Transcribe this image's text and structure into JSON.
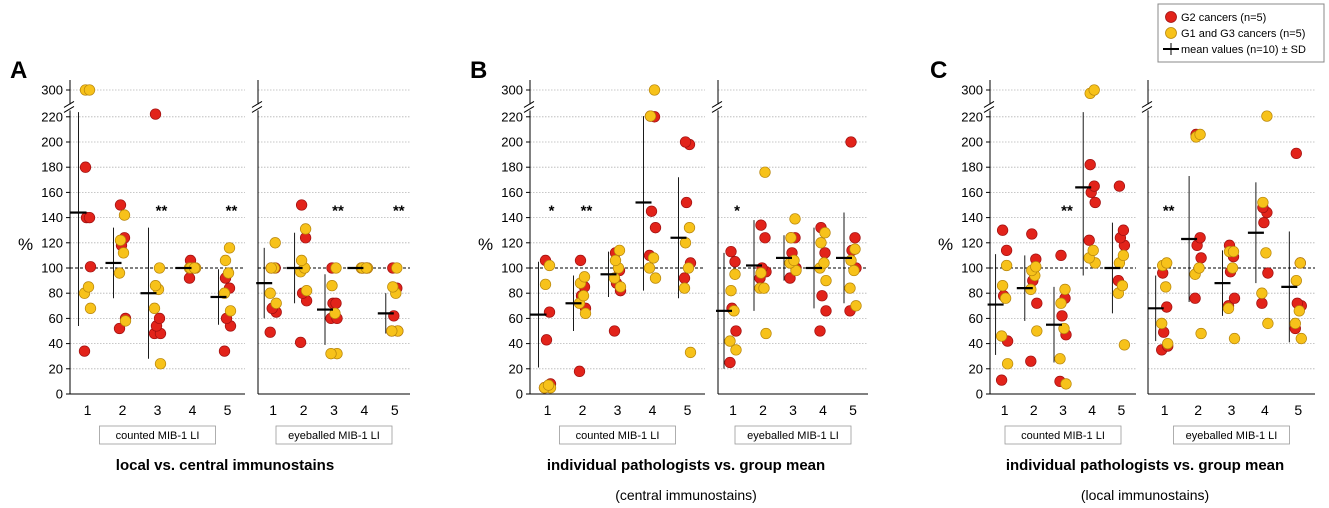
{
  "legend": {
    "red_label": "G2 cancers (n=5)",
    "yellow_label": "G1 and G3 cancers (n=5)",
    "mean_label": "mean values (n=10) ± SD"
  },
  "colors": {
    "red": "#e2231a",
    "yellow": "#f7c21a",
    "red_stroke": "#a01010",
    "yellow_stroke": "#b8860b"
  },
  "y_axis": {
    "label": "%",
    "ticks": [
      "0",
      "20",
      "40",
      "60",
      "80",
      "100",
      "120",
      "140",
      "160",
      "180",
      "200",
      "220",
      "300"
    ]
  },
  "panels": [
    {
      "letter": "A",
      "caption": "local vs. central immunostains",
      "subcaption": ""
    },
    {
      "letter": "B",
      "caption": "individual pathologists vs. group mean",
      "subcaption": "(central immunostains)"
    },
    {
      "letter": "C",
      "caption": "individual pathologists vs. group mean",
      "subcaption": "(local immunostains)"
    }
  ],
  "chart_data": [
    {
      "type": "scatter",
      "panel": "A",
      "ylim": [
        0,
        300
      ],
      "y_break": [
        220,
        300
      ],
      "reference_line": 100,
      "subplots": [
        {
          "label": "counted MIB-1 LI",
          "categories": [
            "1",
            "2",
            "3",
            "4",
            "5"
          ],
          "significance": [
            "",
            "",
            "**",
            "",
            "**"
          ],
          "mean": [
            144,
            104,
            80,
            100,
            77
          ],
          "sd": [
            90,
            28,
            52,
            0,
            22
          ],
          "red": [
            [
              34,
              101,
              140,
              140,
              180
            ],
            [
              52,
              60,
              118,
              124,
              150
            ],
            [
              48,
              48,
              54,
              60,
              228
            ],
            [
              92,
              100,
              100,
              100,
              106
            ],
            [
              34,
              54,
              60,
              84,
              92
            ]
          ],
          "yellow": [
            [
              68,
              80,
              85,
              300,
              300
            ],
            [
              58,
              96,
              112,
              122,
              142
            ],
            [
              24,
              68,
              83,
              86,
              100
            ],
            [
              100,
              100,
              100,
              100,
              100
            ],
            [
              66,
              80,
              96,
              106,
              116
            ]
          ]
        },
        {
          "label": "eyeballed MIB-1 LI",
          "categories": [
            "1",
            "2",
            "3",
            "4",
            "5"
          ],
          "significance": [
            "",
            "",
            "**",
            "",
            "**"
          ],
          "mean": [
            88,
            100,
            67,
            100,
            64
          ],
          "sd": [
            28,
            28,
            28,
            0,
            16
          ],
          "red": [
            [
              49,
              65,
              68,
              100,
              100
            ],
            [
              41,
              74,
              80,
              124,
              150
            ],
            [
              60,
              60,
              72,
              72,
              100
            ],
            [
              100,
              100,
              100,
              100,
              100
            ],
            [
              50,
              50,
              62,
              84,
              100
            ]
          ],
          "yellow": [
            [
              72,
              80,
              100,
              100,
              120
            ],
            [
              82,
              97,
              100,
              106,
              131
            ],
            [
              32,
              32,
              64,
              86,
              100
            ],
            [
              100,
              100,
              100,
              100,
              100
            ],
            [
              50,
              50,
              80,
              85,
              100
            ]
          ]
        }
      ]
    },
    {
      "type": "scatter",
      "panel": "B",
      "ylim": [
        0,
        300
      ],
      "y_break": [
        220,
        300
      ],
      "reference_line": 100,
      "subplots": [
        {
          "label": "counted MIB-1 LI",
          "categories": [
            "1",
            "2",
            "3",
            "4",
            "5"
          ],
          "significance": [
            "*",
            "**",
            "",
            "",
            ""
          ],
          "mean": [
            63,
            72,
            95,
            152,
            124
          ],
          "sd": [
            42,
            22,
            18,
            70,
            48
          ],
          "red": [
            [
              5,
              8,
              43,
              65,
              106
            ],
            [
              18,
              68,
              78,
              85,
              106
            ],
            [
              50,
              82,
              88,
              98,
              112
            ],
            [
              110,
              132,
              145,
              220,
              222
            ],
            [
              92,
              104,
              152,
              198,
              200
            ]
          ],
          "yellow": [
            [
              5,
              5,
              7,
              87,
              102
            ],
            [
              64,
              72,
              78,
              88,
              93
            ],
            [
              85,
              92,
              100,
              106,
              114
            ],
            [
              92,
              100,
              108,
              222,
              300
            ],
            [
              33,
              84,
              100,
              120,
              132
            ]
          ]
        },
        {
          "label": "eyeballed MIB-1 LI",
          "categories": [
            "1",
            "2",
            "3",
            "4",
            "5"
          ],
          "significance": [
            "*",
            "",
            "",
            "",
            ""
          ],
          "mean": [
            66,
            102,
            108,
            100,
            108
          ],
          "sd": [
            46,
            36,
            18,
            32,
            36
          ],
          "red": [
            [
              25,
              50,
              68,
              105,
              113
            ],
            [
              92,
              97,
              100,
              124,
              134
            ],
            [
              92,
              100,
              112,
              124,
              124
            ],
            [
              50,
              66,
              78,
              112,
              132
            ],
            [
              66,
              100,
              114,
              124,
              200
            ]
          ],
          "yellow": [
            [
              35,
              42,
              66,
              82,
              95
            ],
            [
              48,
              84,
              84,
              96,
              176
            ],
            [
              98,
              104,
              106,
              124,
              139
            ],
            [
              90,
              100,
              104,
              120,
              128
            ],
            [
              70,
              84,
              98,
              106,
              115
            ]
          ]
        }
      ]
    },
    {
      "type": "scatter",
      "panel": "C",
      "ylim": [
        0,
        300
      ],
      "y_break": [
        220,
        300
      ],
      "reference_line": 100,
      "subplots": [
        {
          "label": "counted MIB-1 LI",
          "categories": [
            "1",
            "2",
            "3",
            "4",
            "5"
          ],
          "significance": [
            "",
            "",
            "**",
            "",
            ""
          ],
          "mean": [
            71,
            84,
            55,
            164,
            100
          ],
          "sd": [
            40,
            26,
            30,
            70,
            36
          ],
          "red": [
            [
              11,
              42,
              78,
              114,
              130
            ],
            [
              26,
              72,
              90,
              107,
              127
            ],
            [
              10,
              47,
              62,
              76,
              110
            ],
            [
              122,
              152,
              160,
              165,
              182
            ],
            [
              90,
              118,
              124,
              130,
              165
            ]
          ],
          "yellow": [
            [
              24,
              46,
              76,
              86,
              102
            ],
            [
              50,
              83,
              94,
              98,
              101
            ],
            [
              8,
              28,
              52,
              72,
              83
            ],
            [
              104,
              108,
              114,
              290,
              300
            ],
            [
              39,
              80,
              86,
              104,
              110
            ]
          ]
        },
        {
          "label": "eyeballed MIB-1 LI",
          "categories": [
            "1",
            "2",
            "3",
            "4",
            "5"
          ],
          "significance": [
            "**",
            "",
            "",
            "",
            ""
          ],
          "mean": [
            68,
            123,
            88,
            128,
            85
          ],
          "sd": [
            26,
            50,
            26,
            40,
            44
          ],
          "red": [
            [
              35,
              38,
              49,
              69,
              96
            ],
            [
              76,
              108,
              118,
              124,
              206
            ],
            [
              70,
              76,
              97,
              109,
              118
            ],
            [
              72,
              96,
              136,
              144,
              148
            ],
            [
              52,
              70,
              72,
              104,
              191
            ]
          ],
          "yellow": [
            [
              40,
              56,
              85,
              102,
              104
            ],
            [
              48,
              95,
              100,
              204,
              206
            ],
            [
              44,
              68,
              100,
              113,
              113
            ],
            [
              56,
              80,
              112,
              152,
              222
            ],
            [
              44,
              56,
              66,
              90,
              104
            ]
          ]
        }
      ]
    }
  ]
}
